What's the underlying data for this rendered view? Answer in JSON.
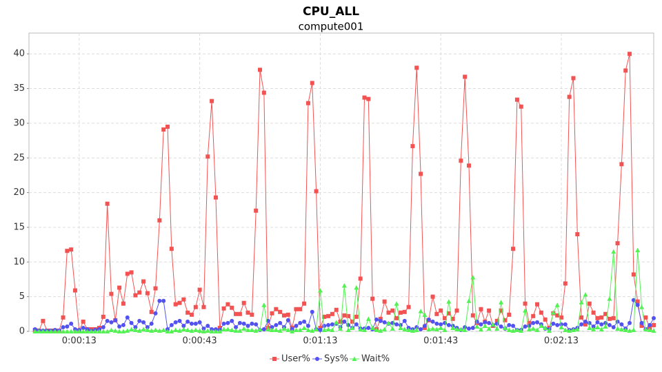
{
  "chart_data": {
    "type": "line",
    "title": "CPU_ALL",
    "subtitle": "compute001",
    "x": [
      2,
      3,
      4,
      5,
      6,
      7,
      8,
      9,
      10,
      11,
      12,
      13,
      14,
      15,
      16,
      17,
      18,
      19,
      20,
      21,
      22,
      23,
      24,
      25,
      26,
      27,
      28,
      29,
      30,
      31,
      32,
      33,
      34,
      35,
      36,
      37,
      38,
      39,
      40,
      41,
      42,
      43,
      44,
      45,
      46,
      47,
      48,
      49,
      50,
      51,
      52,
      53,
      54,
      55,
      56,
      57,
      58,
      59,
      60,
      61,
      62,
      63,
      64,
      65,
      66,
      67,
      68,
      69,
      70,
      71,
      72,
      73,
      74,
      75,
      76,
      77,
      78,
      79,
      80,
      81,
      82,
      83,
      84,
      85,
      86,
      87,
      88,
      89,
      90,
      91,
      92,
      93,
      94,
      95,
      96,
      97,
      98,
      99,
      100,
      101,
      102,
      103,
      104,
      105,
      106,
      107,
      108,
      109,
      110,
      111,
      112,
      113,
      114,
      115,
      116,
      117,
      118,
      119,
      120,
      121,
      122,
      123,
      124,
      125,
      126,
      127,
      128,
      129,
      130,
      131,
      132,
      133,
      134,
      135,
      136,
      137,
      138,
      139,
      140,
      141,
      142,
      143,
      144,
      145,
      146,
      147,
      148,
      149,
      150,
      151,
      152,
      153,
      154,
      155,
      156
    ],
    "series": [
      {
        "name": "User%",
        "color": "#f25252",
        "marker": "square",
        "values": [
          0.2,
          0.1,
          1.5,
          0.1,
          0.1,
          0.1,
          0.1,
          2,
          11.6,
          11.8,
          5.9,
          0.1,
          1.4,
          0.3,
          0.3,
          0.3,
          0.5,
          2.1,
          18.4,
          5.4,
          1.6,
          6.3,
          4,
          8.3,
          8.5,
          5.2,
          5.6,
          7.2,
          5.5,
          2.8,
          6.2,
          16,
          29.1,
          29.5,
          11.9,
          3.9,
          4.1,
          4.6,
          2.7,
          2.4,
          3.5,
          6,
          3.5,
          25.2,
          33.2,
          19.3,
          0.5,
          3.3,
          3.9,
          3.4,
          2.5,
          2.5,
          4.1,
          2.7,
          2.4,
          17.4,
          37.7,
          34.4,
          0.5,
          2.6,
          3.2,
          2.8,
          2.3,
          2.4,
          0.5,
          3.2,
          3.2,
          4,
          32.9,
          35.8,
          20.2,
          0.5,
          2.1,
          2.2,
          2.5,
          3.1,
          1.4,
          2.3,
          2.2,
          1.4,
          2.1,
          7.6,
          33.7,
          33.5,
          4.7,
          0.3,
          1.8,
          4.3,
          2.7,
          3,
          1.9,
          2.7,
          2.8,
          3.5,
          26.7,
          38,
          22.7,
          0.5,
          1.6,
          5,
          2.5,
          3,
          1.9,
          2.6,
          1.8,
          3,
          24.6,
          36.7,
          23.9,
          2.3,
          1.2,
          3.2,
          1.4,
          3,
          0.8,
          1.5,
          3,
          1.6,
          2.4,
          11.9,
          33.4,
          32.4,
          4,
          1.2,
          2.2,
          3.9,
          2.7,
          1.7,
          0.5,
          2.6,
          2.3,
          2,
          6.9,
          33.8,
          36.5,
          14,
          2,
          1,
          4,
          2.7,
          1.9,
          2,
          2.5,
          1.8,
          1.9,
          12.7,
          24.1,
          37.6,
          40,
          8.2,
          4.3,
          0.8,
          2,
          0.5,
          0.9
        ]
      },
      {
        "name": "Sys%",
        "color": "#5252f2",
        "marker": "circle",
        "values": [
          0.3,
          0.1,
          0.1,
          0.1,
          0.1,
          0.2,
          0.1,
          0.6,
          0.7,
          1.1,
          0.3,
          0.2,
          0.5,
          0.3,
          0.1,
          0.2,
          0.3,
          0.6,
          1.5,
          1.3,
          1.6,
          0.7,
          0.9,
          2,
          1.2,
          0.6,
          1.5,
          1.3,
          0.6,
          1.1,
          2.6,
          4.4,
          4.4,
          0.3,
          0.9,
          1.3,
          1.5,
          0.8,
          1.4,
          1.1,
          1.1,
          1.3,
          0.4,
          0.8,
          0.3,
          0.3,
          0.2,
          1.1,
          1.2,
          1.5,
          0.6,
          1.2,
          1.1,
          0.8,
          1.1,
          1,
          0.2,
          0.3,
          1.5,
          0.6,
          0.9,
          1.2,
          0.6,
          1.6,
          0.3,
          0.8,
          1.2,
          1.4,
          0.8,
          2.8,
          0.3,
          0.2,
          0.8,
          0.9,
          1,
          1.1,
          0.6,
          1.4,
          0.9,
          0.5,
          1,
          0.4,
          0.4,
          0.5,
          0.3,
          1.7,
          1.5,
          1.3,
          1.1,
          1.2,
          1,
          0.9,
          1.5,
          0.5,
          0.3,
          0.6,
          0.3,
          0.8,
          1.7,
          1.4,
          1.1,
          1,
          1.2,
          0.9,
          0.8,
          0.5,
          0.2,
          0.6,
          0.4,
          0.5,
          1.4,
          1,
          1.3,
          1.2,
          0.9,
          1.1,
          0.7,
          0.4,
          0.9,
          0.8,
          0.2,
          0.2,
          0.7,
          0.8,
          1.2,
          1.3,
          1,
          0.4,
          0.3,
          1.1,
          0.9,
          1,
          1,
          0.2,
          0.3,
          0.5,
          1,
          1.4,
          1.2,
          0.7,
          1.3,
          1,
          1.2,
          0.9,
          0.6,
          1.4,
          1,
          0.4,
          1.2,
          4.5,
          3.8,
          1.2,
          0.3,
          0.9,
          1.9
        ]
      },
      {
        "name": "Wait%",
        "color": "#52f252",
        "marker": "triangle",
        "values": [
          0,
          0,
          0,
          0,
          0,
          0,
          0,
          0,
          0,
          0,
          0,
          0,
          0,
          0,
          0,
          0,
          0,
          0,
          0,
          0.2,
          0.1,
          0,
          0,
          0.1,
          0.3,
          0.2,
          0.1,
          0.3,
          0.2,
          0.1,
          0.2,
          0.1,
          0.2,
          0,
          0,
          0.2,
          0.1,
          0.3,
          0.2,
          0.1,
          0.2,
          0.1,
          0,
          0.1,
          0,
          0,
          0,
          0.3,
          0.3,
          0.2,
          0.1,
          0.1,
          0.4,
          0.2,
          0.2,
          0.1,
          0.3,
          3.8,
          0.3,
          0.2,
          0.2,
          0.1,
          0.4,
          0.2,
          0,
          0.2,
          0.2,
          0.5,
          0.2,
          0.1,
          0.3,
          5.9,
          0.2,
          0.3,
          0.2,
          1.3,
          0.4,
          6.6,
          0.2,
          0.5,
          6.3,
          0.3,
          0.2,
          1.8,
          0.5,
          0.2,
          0.1,
          0.3,
          1.2,
          0.4,
          4,
          0.5,
          0.3,
          0.2,
          0.1,
          0.2,
          2.9,
          2.4,
          0.3,
          0.4,
          0.3,
          0.5,
          0.2,
          4.3,
          0.5,
          0.3,
          0.3,
          0.2,
          4.4,
          7.8,
          0.7,
          0.3,
          0.8,
          0.4,
          1,
          0.4,
          4.2,
          0.5,
          0.2,
          0.1,
          0.2,
          0.1,
          3,
          0.3,
          0.4,
          0.2,
          0.8,
          0.5,
          0.1,
          2.7,
          3.8,
          0.6,
          0.2,
          0.1,
          0.2,
          0.3,
          4.2,
          5.3,
          0.5,
          0.3,
          0.6,
          0.3,
          0.7,
          4.7,
          11.5,
          0.4,
          0.3,
          0.2,
          0.1,
          0.2,
          11.7,
          3.5,
          0.3,
          0.2,
          0.1
        ]
      }
    ],
    "xlim": [
      0.5,
      156
    ],
    "ylim": [
      0,
      43
    ],
    "xticks": [
      {
        "value": 13,
        "label": "0:00:13"
      },
      {
        "value": 43,
        "label": "0:00:43"
      },
      {
        "value": 73,
        "label": "0:01:13"
      },
      {
        "value": 103,
        "label": "0:01:43"
      },
      {
        "value": 133,
        "label": "0:02:13"
      }
    ],
    "yticks": [
      0,
      5,
      10,
      15,
      20,
      25,
      30,
      35,
      40
    ],
    "grid": true,
    "legend": "bottom"
  }
}
